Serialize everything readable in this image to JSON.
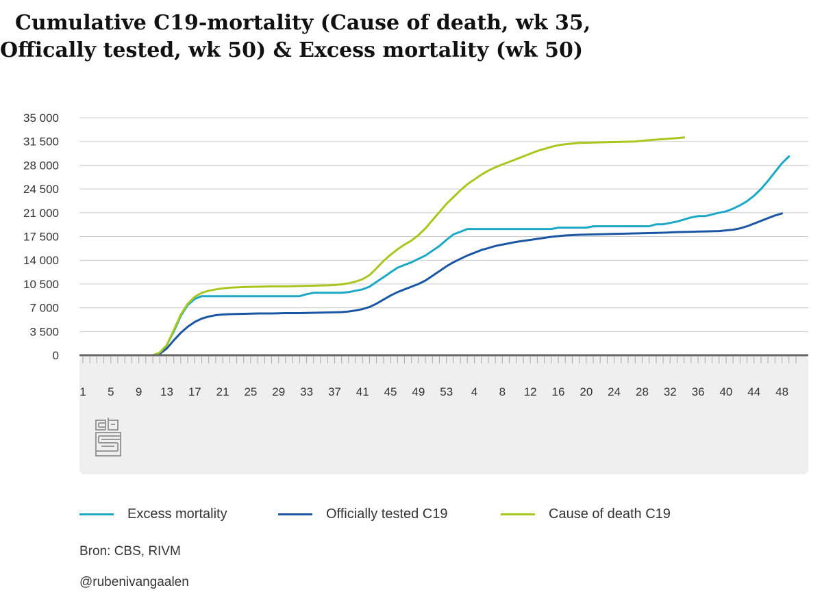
{
  "title": "Cumulative C19-mortality (Cause of death, wk 35, Offically tested, wk 50) & Excess mortality (wk 50)",
  "source": "Bron: CBS, RIVM",
  "author": "@rubenivangaalen",
  "logo": "cbs-logo",
  "colors": {
    "excess": "#1ba8c7",
    "tested": "#1a56a3",
    "cause": "#a8c71e",
    "grid": "#cccccc",
    "axis": "#666666",
    "band": "#efefef"
  },
  "chart_data": {
    "type": "line",
    "xlabel": "",
    "ylabel": "",
    "ylim": [
      0,
      35000
    ],
    "yticks": [
      0,
      3500,
      7000,
      10500,
      14000,
      17500,
      21000,
      24500,
      28000,
      31500,
      35000
    ],
    "ytick_labels": [
      "0",
      "3 500",
      "7 000",
      "10 500",
      "14 000",
      "17 500",
      "21 000",
      "24 500",
      "28 000",
      "31 500",
      "35 000"
    ],
    "xtick_labels": [
      "1",
      "5",
      "9",
      "13",
      "17",
      "21",
      "25",
      "29",
      "33",
      "37",
      "41",
      "45",
      "49",
      "53",
      "4",
      "8",
      "12",
      "16",
      "20",
      "24",
      "28",
      "32",
      "36",
      "40",
      "44",
      "48"
    ],
    "x_weeks_per_tick": 4,
    "total_weeks": 103,
    "grid": true,
    "legend_position": "bottom",
    "series": [
      {
        "name": "Excess mortality",
        "key": "excess",
        "points": [
          [
            10,
            0
          ],
          [
            11,
            0
          ],
          [
            12,
            300
          ],
          [
            13,
            1500
          ],
          [
            14,
            3500
          ],
          [
            15,
            5800
          ],
          [
            16,
            7400
          ],
          [
            17,
            8300
          ],
          [
            18,
            8700
          ],
          [
            19,
            8700
          ],
          [
            20,
            8700
          ],
          [
            22,
            8700
          ],
          [
            26,
            8700
          ],
          [
            30,
            8700
          ],
          [
            32,
            8700
          ],
          [
            33,
            9000
          ],
          [
            34,
            9200
          ],
          [
            36,
            9200
          ],
          [
            38,
            9200
          ],
          [
            39,
            9300
          ],
          [
            40,
            9500
          ],
          [
            41,
            9700
          ],
          [
            42,
            10100
          ],
          [
            43,
            10800
          ],
          [
            44,
            11500
          ],
          [
            45,
            12200
          ],
          [
            46,
            12900
          ],
          [
            47,
            13300
          ],
          [
            48,
            13700
          ],
          [
            49,
            14200
          ],
          [
            50,
            14700
          ],
          [
            51,
            15400
          ],
          [
            52,
            16100
          ],
          [
            53,
            17000
          ],
          [
            54,
            17800
          ],
          [
            55,
            18200
          ],
          [
            56,
            18600
          ],
          [
            57,
            18600
          ],
          [
            60,
            18600
          ],
          [
            64,
            18600
          ],
          [
            68,
            18600
          ],
          [
            69,
            18800
          ],
          [
            72,
            18800
          ],
          [
            73,
            18800
          ],
          [
            74,
            19000
          ],
          [
            78,
            19000
          ],
          [
            82,
            19000
          ],
          [
            83,
            19300
          ],
          [
            84,
            19300
          ],
          [
            86,
            19700
          ],
          [
            87,
            20000
          ],
          [
            88,
            20300
          ],
          [
            89,
            20500
          ],
          [
            90,
            20500
          ],
          [
            92,
            21000
          ],
          [
            93,
            21200
          ],
          [
            94,
            21600
          ],
          [
            95,
            22100
          ],
          [
            96,
            22700
          ],
          [
            97,
            23500
          ],
          [
            98,
            24500
          ],
          [
            99,
            25700
          ],
          [
            100,
            27000
          ],
          [
            101,
            28300
          ],
          [
            102,
            29300
          ]
        ]
      },
      {
        "name": "Officially tested C19",
        "key": "tested",
        "points": [
          [
            10,
            0
          ],
          [
            11,
            0
          ],
          [
            12,
            200
          ],
          [
            13,
            1000
          ],
          [
            14,
            2200
          ],
          [
            15,
            3300
          ],
          [
            16,
            4200
          ],
          [
            17,
            4900
          ],
          [
            18,
            5400
          ],
          [
            19,
            5700
          ],
          [
            20,
            5900
          ],
          [
            21,
            6000
          ],
          [
            22,
            6050
          ],
          [
            24,
            6100
          ],
          [
            26,
            6150
          ],
          [
            28,
            6150
          ],
          [
            30,
            6200
          ],
          [
            32,
            6200
          ],
          [
            34,
            6250
          ],
          [
            36,
            6300
          ],
          [
            38,
            6350
          ],
          [
            39,
            6450
          ],
          [
            40,
            6600
          ],
          [
            41,
            6800
          ],
          [
            42,
            7100
          ],
          [
            43,
            7600
          ],
          [
            44,
            8200
          ],
          [
            45,
            8800
          ],
          [
            46,
            9300
          ],
          [
            47,
            9700
          ],
          [
            48,
            10100
          ],
          [
            49,
            10500
          ],
          [
            50,
            11000
          ],
          [
            51,
            11700
          ],
          [
            52,
            12400
          ],
          [
            53,
            13100
          ],
          [
            54,
            13700
          ],
          [
            55,
            14200
          ],
          [
            56,
            14700
          ],
          [
            57,
            15100
          ],
          [
            58,
            15500
          ],
          [
            59,
            15800
          ],
          [
            60,
            16100
          ],
          [
            61,
            16300
          ],
          [
            62,
            16500
          ],
          [
            63,
            16700
          ],
          [
            64,
            16850
          ],
          [
            65,
            17000
          ],
          [
            66,
            17150
          ],
          [
            67,
            17300
          ],
          [
            68,
            17450
          ],
          [
            69,
            17550
          ],
          [
            70,
            17650
          ],
          [
            71,
            17700
          ],
          [
            72,
            17750
          ],
          [
            74,
            17800
          ],
          [
            76,
            17850
          ],
          [
            78,
            17900
          ],
          [
            80,
            17950
          ],
          [
            82,
            18000
          ],
          [
            84,
            18050
          ],
          [
            86,
            18150
          ],
          [
            88,
            18200
          ],
          [
            90,
            18250
          ],
          [
            92,
            18300
          ],
          [
            93,
            18400
          ],
          [
            94,
            18500
          ],
          [
            95,
            18700
          ],
          [
            96,
            19000
          ],
          [
            97,
            19400
          ],
          [
            98,
            19800
          ],
          [
            99,
            20200
          ],
          [
            100,
            20600
          ],
          [
            101,
            20900
          ]
        ]
      },
      {
        "name": "Cause of death C19",
        "key": "cause",
        "points": [
          [
            10,
            0
          ],
          [
            11,
            0
          ],
          [
            12,
            400
          ],
          [
            13,
            1500
          ],
          [
            14,
            3700
          ],
          [
            15,
            6000
          ],
          [
            16,
            7600
          ],
          [
            17,
            8600
          ],
          [
            18,
            9200
          ],
          [
            19,
            9500
          ],
          [
            20,
            9700
          ],
          [
            21,
            9850
          ],
          [
            22,
            9950
          ],
          [
            24,
            10050
          ],
          [
            26,
            10100
          ],
          [
            28,
            10150
          ],
          [
            30,
            10150
          ],
          [
            32,
            10200
          ],
          [
            34,
            10250
          ],
          [
            36,
            10300
          ],
          [
            37,
            10350
          ],
          [
            38,
            10450
          ],
          [
            39,
            10600
          ],
          [
            40,
            10850
          ],
          [
            41,
            11200
          ],
          [
            42,
            11800
          ],
          [
            43,
            12800
          ],
          [
            44,
            13900
          ],
          [
            45,
            14800
          ],
          [
            46,
            15600
          ],
          [
            47,
            16300
          ],
          [
            48,
            16900
          ],
          [
            49,
            17700
          ],
          [
            50,
            18700
          ],
          [
            51,
            19900
          ],
          [
            52,
            21100
          ],
          [
            53,
            22300
          ],
          [
            54,
            23300
          ],
          [
            55,
            24300
          ],
          [
            56,
            25200
          ],
          [
            57,
            25900
          ],
          [
            58,
            26600
          ],
          [
            59,
            27200
          ],
          [
            60,
            27700
          ],
          [
            61,
            28100
          ],
          [
            62,
            28500
          ],
          [
            63,
            28900
          ],
          [
            64,
            29300
          ],
          [
            65,
            29700
          ],
          [
            66,
            30100
          ],
          [
            67,
            30400
          ],
          [
            68,
            30700
          ],
          [
            69,
            30950
          ],
          [
            70,
            31100
          ],
          [
            71,
            31200
          ],
          [
            72,
            31300
          ],
          [
            74,
            31350
          ],
          [
            76,
            31400
          ],
          [
            78,
            31450
          ],
          [
            80,
            31500
          ],
          [
            82,
            31700
          ],
          [
            84,
            31850
          ],
          [
            86,
            32000
          ],
          [
            87,
            32100
          ]
        ]
      }
    ]
  }
}
